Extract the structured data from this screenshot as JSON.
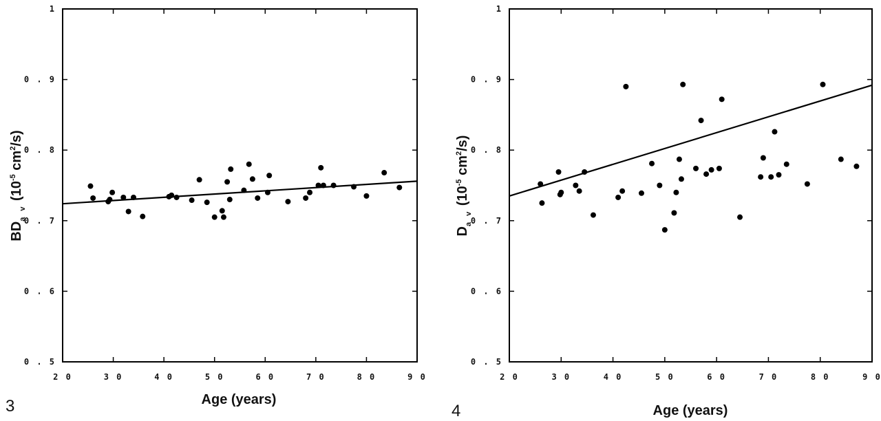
{
  "chart_data": [
    {
      "type": "scatter",
      "figure_number": "3",
      "xlabel": "Age (years)",
      "ylabel": {
        "main": "BD",
        "sub": "a v",
        "unit_open": " (10",
        "exp1": "-5",
        "unit_mid": " cm",
        "exp2": "2",
        "unit_close": "/s)"
      },
      "xlim": [
        20,
        90
      ],
      "ylim": [
        0.5,
        1
      ],
      "x_ticks": [
        "2 0",
        "3 0",
        "4 0",
        "5 0",
        "6 0",
        "7 0",
        "8 0",
        "9 0"
      ],
      "y_ticks": [
        "0 . 5",
        "0 . 6",
        "0 . 7",
        "0 . 8",
        "0 . 9",
        "1"
      ],
      "x_tick_values": [
        20,
        30,
        40,
        50,
        60,
        70,
        80,
        90
      ],
      "y_tick_values": [
        0.5,
        0.6,
        0.7,
        0.8,
        0.9,
        1.0
      ],
      "x": [
        25.5,
        26,
        29,
        29.3,
        29.8,
        32,
        33,
        34,
        35.8,
        41,
        41.5,
        42.5,
        45.5,
        47,
        48.5,
        50,
        51.5,
        51.8,
        52.5,
        53,
        53.2,
        55.8,
        56.8,
        57.5,
        58.5,
        60.5,
        60.8,
        64.5,
        68,
        68.8,
        70.5,
        71,
        71.5,
        73.5,
        77.5,
        80,
        83.5,
        86.5
      ],
      "y": [
        0.749,
        0.732,
        0.727,
        0.73,
        0.74,
        0.733,
        0.713,
        0.733,
        0.706,
        0.734,
        0.736,
        0.733,
        0.729,
        0.758,
        0.726,
        0.705,
        0.714,
        0.705,
        0.755,
        0.73,
        0.773,
        0.743,
        0.78,
        0.759,
        0.732,
        0.74,
        0.764,
        0.727,
        0.732,
        0.74,
        0.75,
        0.775,
        0.75,
        0.75,
        0.748,
        0.735,
        0.768,
        0.747
      ],
      "trend_line": {
        "x": [
          20,
          90
        ],
        "y": [
          0.724,
          0.756
        ]
      }
    },
    {
      "type": "scatter",
      "figure_number": "4",
      "xlabel": "Age (years)",
      "ylabel": {
        "main": "D",
        "sub": "a v",
        "unit_open": " (10",
        "exp1": "-5",
        "unit_mid": " cm",
        "exp2": "2",
        "unit_close": "/s)"
      },
      "xlim": [
        20,
        90
      ],
      "ylim": [
        0.5,
        1
      ],
      "x_ticks": [
        "2 0",
        "3 0",
        "4 0",
        "5 0",
        "6 0",
        "7 0",
        "8 0",
        "9 0"
      ],
      "y_ticks": [
        "0 . 5",
        "0 . 6",
        "0 . 7",
        "0 . 8",
        "0 . 9",
        "1"
      ],
      "x_tick_values": [
        20,
        30,
        40,
        50,
        60,
        70,
        80,
        90
      ],
      "y_tick_values": [
        0.5,
        0.6,
        0.7,
        0.8,
        0.9,
        1.0
      ],
      "x": [
        26,
        26.3,
        29.5,
        29.8,
        30,
        32.8,
        33.5,
        34.5,
        36.2,
        41,
        41.8,
        42.5,
        45.5,
        47.5,
        49,
        50,
        51.8,
        52.2,
        52.8,
        53.2,
        53.5,
        56,
        57,
        58,
        59,
        60.5,
        61,
        64.5,
        68.5,
        69,
        70.5,
        71.2,
        72,
        73.5,
        77.5,
        80.5,
        84,
        87
      ],
      "y": [
        0.752,
        0.725,
        0.769,
        0.737,
        0.74,
        0.75,
        0.742,
        0.769,
        0.708,
        0.733,
        0.742,
        0.89,
        0.739,
        0.781,
        0.75,
        0.687,
        0.711,
        0.74,
        0.787,
        0.759,
        0.893,
        0.774,
        0.842,
        0.766,
        0.772,
        0.774,
        0.872,
        0.705,
        0.762,
        0.789,
        0.762,
        0.826,
        0.765,
        0.78,
        0.752,
        0.893,
        0.787,
        0.777
      ],
      "trend_line": {
        "x": [
          20,
          90
        ],
        "y": [
          0.735,
          0.892
        ]
      }
    }
  ]
}
